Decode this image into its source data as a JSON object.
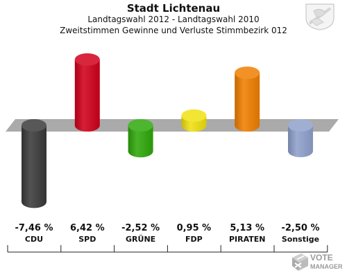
{
  "header": {
    "title": "Stadt Lichtenau",
    "subtitle": "Landtagswahl 2012 - Landtagswahl 2010",
    "subtitle2": "Zweitstimmen Gewinne und Verluste Stimmbezirk 012"
  },
  "logo": {
    "text": "VOTE MANAGER",
    "icon": "ballot-box-icon"
  },
  "crest": {
    "icon": "coat-of-arms-icon"
  },
  "chart_data": {
    "type": "bar",
    "categories": [
      "CDU",
      "SPD",
      "GRÜNE",
      "FDP",
      "PIRATEN",
      "Sonstige"
    ],
    "values": [
      -7.46,
      6.42,
      -2.52,
      0.95,
      5.13,
      -2.5
    ],
    "value_labels": [
      "-7,46 %",
      "6,42 %",
      "-2,52 %",
      "0,95 %",
      "5,13 %",
      "-2,50 %"
    ],
    "colors": [
      "#3a3a3a",
      "#d0001b",
      "#2ea80a",
      "#f0e010",
      "#f07f00",
      "#8fa0cc"
    ],
    "baseline": 0
  }
}
